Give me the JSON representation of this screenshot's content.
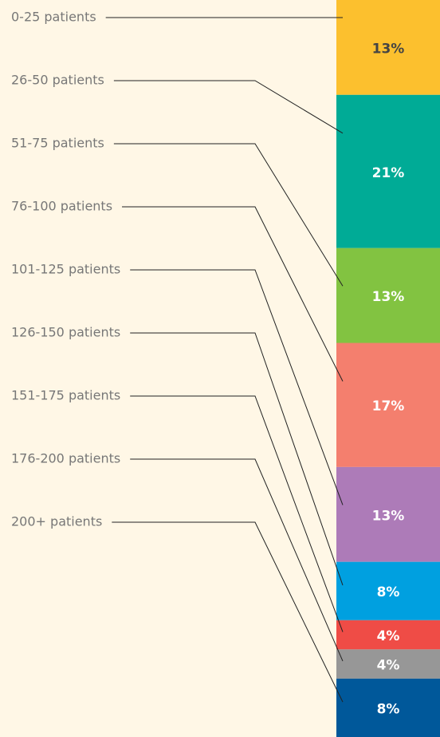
{
  "chart_data": {
    "type": "stacked-bar",
    "categories": [
      "0-25 patients",
      "26-50 patients",
      "51-75 patients",
      "76-100 patients",
      "101-125 patients",
      "126-150 patients",
      "151-175 patients",
      "176-200 patients",
      "200+ patients"
    ],
    "values": [
      13,
      21,
      13,
      17,
      13,
      8,
      4,
      4,
      8
    ],
    "value_labels": [
      "13%",
      "21%",
      "13%",
      "17%",
      "13%",
      "8%",
      "4%",
      "4%",
      "8%"
    ],
    "colors": [
      "#fcc02e",
      "#00ab96",
      "#82c341",
      "#f47f6e",
      "#ad7bb8",
      "#00a0e0",
      "#ef4c46",
      "#979797",
      "#00589a"
    ]
  }
}
